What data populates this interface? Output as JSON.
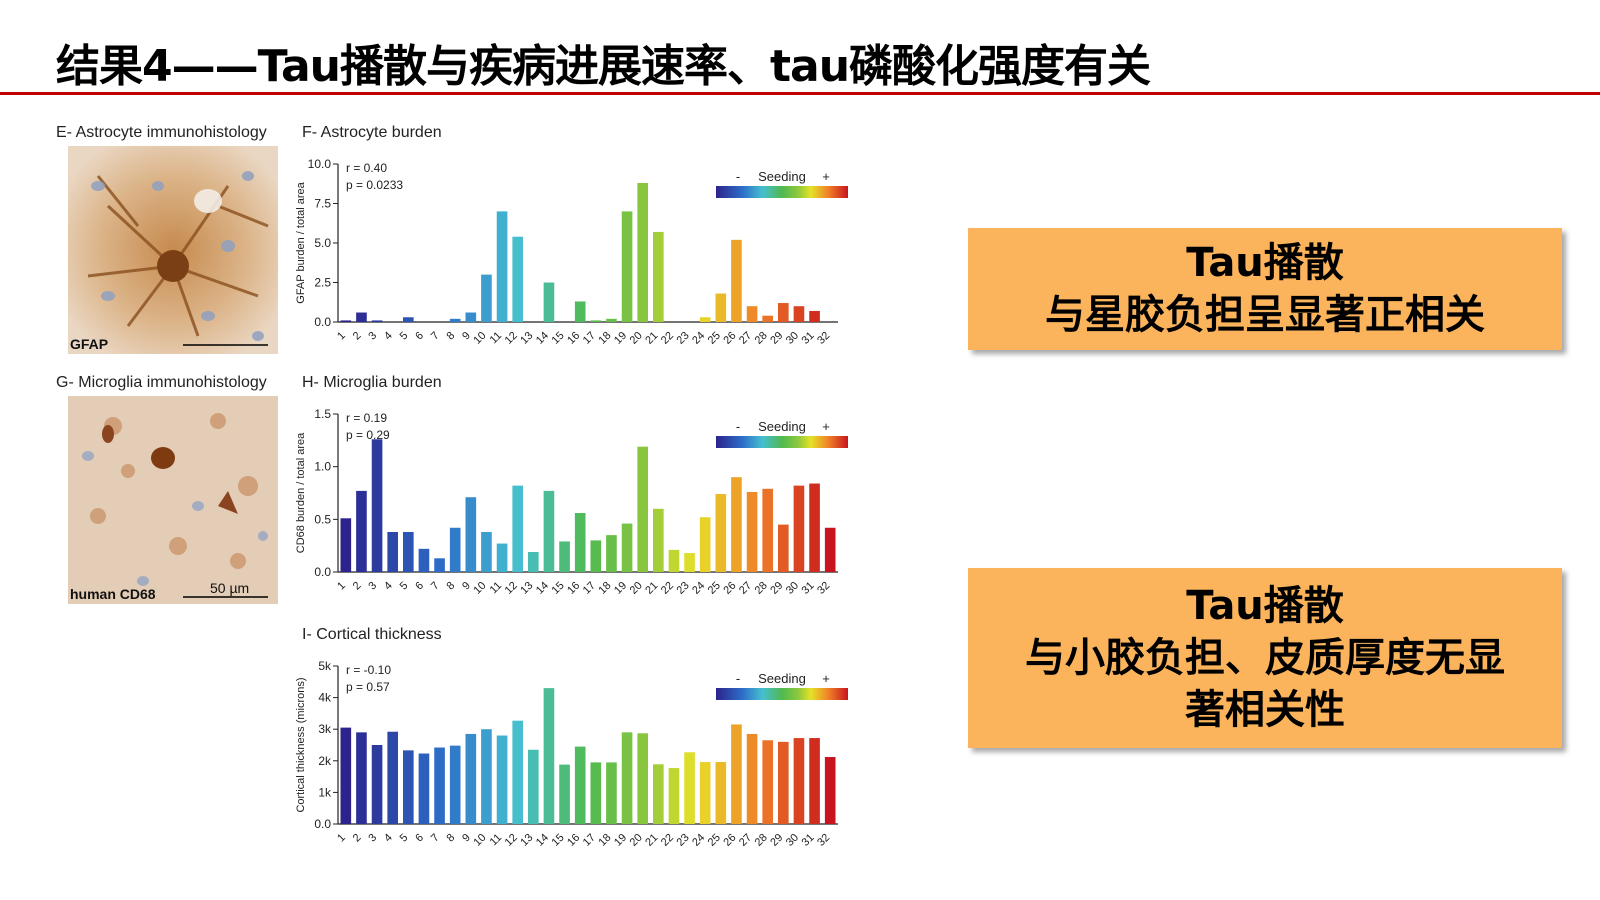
{
  "slide": {
    "title": "结果4——Tau播散与疾病进展速率、tau磷酸化强度有关"
  },
  "panels": {
    "e": {
      "letter": "E-",
      "label": "Astrocyte immunohistology",
      "stain": "GFAP"
    },
    "g": {
      "letter": "G-",
      "label": "Microglia immunohistology",
      "stain": "human CD68",
      "scale_bar": "50 µm"
    },
    "f": {
      "letter": "F-",
      "label": "Astrocyte burden"
    },
    "h": {
      "letter": "H-",
      "label": "Microglia burden"
    },
    "i": {
      "letter": "I-",
      "label": "Cortical thickness"
    }
  },
  "legend": {
    "title": "Seeding",
    "minus": "-",
    "plus": "+"
  },
  "callouts": [
    {
      "lines": [
        "Tau播散",
        "与星胶负担呈显著正相关"
      ]
    },
    {
      "lines": [
        "Tau播散",
        "与小胶负担、皮质厚度无显",
        "著相关性"
      ]
    }
  ],
  "chart_data": [
    {
      "type": "bar",
      "title": "Astrocyte burden",
      "ylabel": "GFAP burden / total area",
      "ylim": [
        0,
        10
      ],
      "yticks": [
        "0.0",
        "2.5",
        "5.0",
        "7.5",
        "10.0"
      ],
      "ytick_values": [
        0,
        2.5,
        5,
        7.5,
        10
      ],
      "stats": [
        "r = 0.40",
        "p = 0.0233"
      ],
      "categories": [
        "1",
        "2",
        "3",
        "4",
        "5",
        "6",
        "7",
        "8",
        "9",
        "10",
        "11",
        "12",
        "13",
        "14",
        "15",
        "16",
        "17",
        "18",
        "19",
        "20",
        "21",
        "22",
        "23",
        "24",
        "25",
        "26",
        "27",
        "28",
        "29",
        "30",
        "31",
        "32"
      ],
      "values": [
        0.1,
        0.6,
        0.1,
        0,
        0.3,
        0,
        0,
        0.2,
        0.6,
        3.0,
        7.0,
        5.4,
        0,
        2.5,
        0,
        1.3,
        0.1,
        0.2,
        7.0,
        8.8,
        5.7,
        0,
        0,
        0.3,
        1.8,
        5.2,
        1.0,
        0.4,
        1.2,
        1.0,
        0.7,
        0
      ]
    },
    {
      "type": "bar",
      "title": "Microglia burden",
      "ylabel": "CD68 burden / total area",
      "ylim": [
        0,
        1.5
      ],
      "yticks": [
        "0.0",
        "0.5",
        "1.0",
        "1.5"
      ],
      "ytick_values": [
        0,
        0.5,
        1.0,
        1.5
      ],
      "stats": [
        "r = 0.19",
        "p = 0.29"
      ],
      "categories": [
        "1",
        "2",
        "3",
        "4",
        "5",
        "6",
        "7",
        "8",
        "9",
        "10",
        "11",
        "12",
        "13",
        "14",
        "15",
        "16",
        "17",
        "18",
        "19",
        "20",
        "21",
        "22",
        "23",
        "24",
        "25",
        "26",
        "27",
        "28",
        "29",
        "30",
        "31",
        "32"
      ],
      "values": [
        0.51,
        0.77,
        1.26,
        0.38,
        0.38,
        0.22,
        0.13,
        0.42,
        0.71,
        0.38,
        0.27,
        0.82,
        0.19,
        0.77,
        0.29,
        0.56,
        0.3,
        0.35,
        0.46,
        1.19,
        0.6,
        0.21,
        0.18,
        0.52,
        0.74,
        0.9,
        0.76,
        0.79,
        0.45,
        0.82,
        0.84,
        0.42
      ]
    },
    {
      "type": "bar",
      "title": "Cortical thickness",
      "ylabel": "Cortical thickness (microns)",
      "ylim": [
        0,
        5000
      ],
      "yticks": [
        "0.0",
        "1k",
        "2k",
        "3k",
        "4k",
        "5k"
      ],
      "ytick_values": [
        0,
        1000,
        2000,
        3000,
        4000,
        5000
      ],
      "stats": [
        "r = -0.10",
        "p = 0.57"
      ],
      "categories": [
        "1",
        "2",
        "3",
        "4",
        "5",
        "6",
        "7",
        "8",
        "9",
        "10",
        "11",
        "12",
        "13",
        "14",
        "15",
        "16",
        "17",
        "18",
        "19",
        "20",
        "21",
        "22",
        "23",
        "24",
        "25",
        "26",
        "27",
        "28",
        "29",
        "30",
        "31",
        "32"
      ],
      "values": [
        3050,
        2900,
        2500,
        2920,
        2330,
        2230,
        2420,
        2480,
        2850,
        3000,
        2800,
        3270,
        2350,
        4300,
        1880,
        2450,
        1950,
        1950,
        2900,
        2870,
        1890,
        1770,
        2270,
        1960,
        1960,
        3150,
        2850,
        2650,
        2600,
        2720,
        2720,
        2120
      ]
    }
  ]
}
